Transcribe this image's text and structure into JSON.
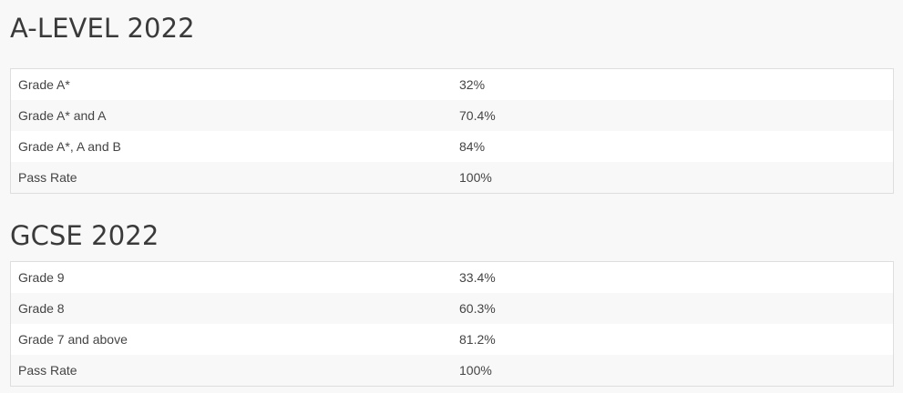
{
  "sections": [
    {
      "title": "A-LEVEL 2022",
      "rows": [
        {
          "label": "Grade A*",
          "value": "32%"
        },
        {
          "label": "Grade A* and A",
          "value": "70.4%"
        },
        {
          "label": "Grade A*, A and B",
          "value": "84%"
        },
        {
          "label": "Pass Rate",
          "value": "100%"
        }
      ]
    },
    {
      "title": "GCSE 2022",
      "rows": [
        {
          "label": "Grade 9",
          "value": "33.4%"
        },
        {
          "label": "Grade 8",
          "value": "60.3%"
        },
        {
          "label": "Grade 7 and above",
          "value": "81.2%"
        },
        {
          "label": "Pass Rate",
          "value": "100%"
        }
      ]
    }
  ]
}
